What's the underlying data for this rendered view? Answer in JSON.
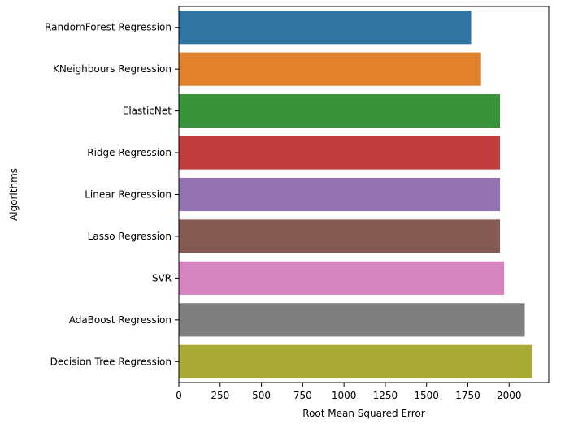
{
  "chart_data": {
    "type": "bar",
    "orientation": "horizontal",
    "title": "",
    "xlabel": "Root Mean Squared Error",
    "ylabel": "Algorithms",
    "xlim": [
      0,
      2240
    ],
    "xticks": [
      0,
      250,
      500,
      750,
      1000,
      1250,
      1500,
      1750,
      2000
    ],
    "grid": false,
    "legend": "none",
    "categories": [
      "RandomForest Regression",
      "KNeighbours Regression",
      "ElasticNet",
      "Ridge Regression",
      "Linear Regression",
      "Lasso Regression",
      "SVR",
      "AdaBoost Regression",
      "Decision Tree Regression"
    ],
    "values": [
      1770,
      1830,
      1945,
      1945,
      1945,
      1945,
      1970,
      2095,
      2140
    ],
    "colors": [
      "#3274a1",
      "#e1812c",
      "#3a923a",
      "#c03d3e",
      "#9372b2",
      "#845b53",
      "#d684bd",
      "#7f7f7f",
      "#a9aa35"
    ]
  }
}
